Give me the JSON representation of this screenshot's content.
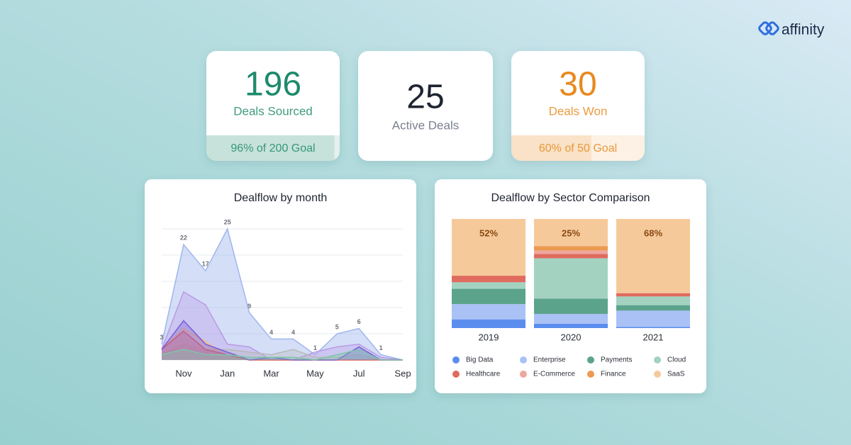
{
  "brand": "affinity",
  "kpis": [
    {
      "value": 196,
      "label": "Deals Sourced",
      "color": "#1d8a6b",
      "goal": {
        "value": 96,
        "label": "96% of 200 Goal"
      }
    },
    {
      "value": 25,
      "label": "Active Deals"
    },
    {
      "value": 30,
      "label": "Deals Won",
      "color": "#e8891e",
      "goal": {
        "value": 60,
        "label": "60% of 50 Goal"
      }
    }
  ],
  "chart_data": [
    {
      "type": "area",
      "title": "Dealflow by month",
      "categories": [
        null,
        "Nov",
        null,
        "Jan",
        null,
        "Mar",
        null,
        "May",
        null,
        "Jul",
        null,
        "Sep"
      ],
      "ylim": [
        0,
        25
      ],
      "yticks": [
        0,
        5,
        10,
        15,
        20,
        25
      ],
      "grid": true,
      "series": [
        {
          "color": "#9fb6ee",
          "values": [
            3,
            22,
            17,
            25,
            9,
            4,
            4,
            1,
            5,
            6,
            1,
            0
          ],
          "value_labels": [
            "3",
            "22",
            "17",
            "25",
            "9",
            "4",
            "4",
            "1",
            "5",
            "6",
            "1",
            null
          ]
        },
        {
          "color": "#b99ae6",
          "values": [
            2,
            13,
            10.5,
            3,
            2.5,
            0,
            0,
            1.5,
            2.5,
            3,
            0.5,
            0
          ]
        },
        {
          "color": "#b8b8b8",
          "values": [
            1,
            3,
            2,
            2,
            1.5,
            1,
            2,
            0.5,
            0.5,
            1,
            0,
            0
          ]
        },
        {
          "color": "#f5b97a",
          "values": [
            2,
            6,
            3.5,
            0.5,
            0,
            0,
            0,
            0,
            0,
            0,
            0,
            0
          ]
        },
        {
          "color": "#e06060",
          "values": [
            2,
            5.5,
            2,
            1,
            0,
            0,
            0,
            0,
            0,
            0,
            0,
            0
          ]
        },
        {
          "color": "#7c5cd6",
          "values": [
            2,
            7.5,
            3,
            1.5,
            0,
            0.5,
            0,
            0,
            0,
            2.5,
            0,
            0
          ]
        },
        {
          "color": "#7cc6a8",
          "values": [
            1,
            2,
            1,
            1,
            0.5,
            0.5,
            0.5,
            0,
            1,
            2,
            0,
            0
          ]
        }
      ]
    },
    {
      "type": "stacked_bar",
      "title": "Dealflow by Sector Comparison",
      "categories": [
        "2019",
        "2020",
        "2021"
      ],
      "ylim": [
        0,
        100
      ],
      "series": [
        {
          "name": "Big Data",
          "color": "#5b8def",
          "values": [
            8,
            4,
            1
          ]
        },
        {
          "name": "Enterprise",
          "color": "#a9c1f5",
          "values": [
            14,
            9,
            15
          ]
        },
        {
          "name": "Payments",
          "color": "#5ca38c",
          "values": [
            14,
            14,
            5
          ]
        },
        {
          "name": "Cloud",
          "color": "#a3d2c1",
          "values": [
            6,
            37,
            8
          ]
        },
        {
          "name": "Healthcare",
          "color": "#e06b5f",
          "values": [
            6,
            4,
            3
          ]
        },
        {
          "name": "E-Commerce",
          "color": "#eea79f",
          "values": [
            0,
            3,
            0
          ]
        },
        {
          "name": "Finance",
          "color": "#eb9a50",
          "values": [
            0,
            4,
            0
          ]
        },
        {
          "name": "SaaS",
          "color": "#f6c99b",
          "values": [
            52,
            25,
            68
          ],
          "value_labels": [
            "52%",
            "25%",
            "68%"
          ]
        }
      ]
    }
  ]
}
